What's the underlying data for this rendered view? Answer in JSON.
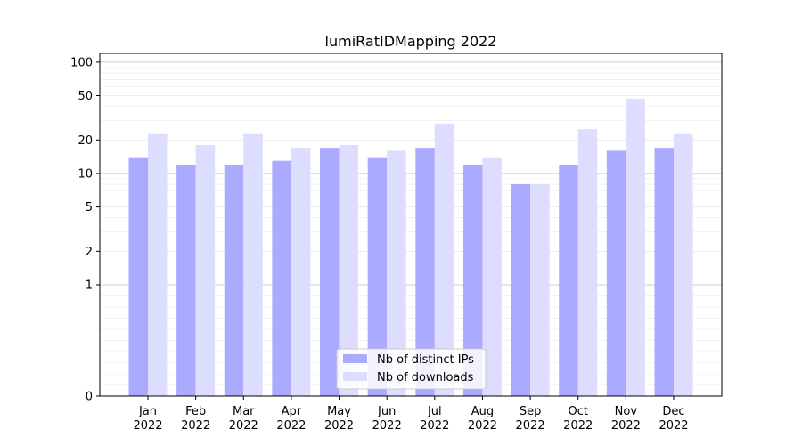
{
  "chart_data": {
    "type": "bar",
    "title": "lumiRatIDMapping 2022",
    "xlabel": "",
    "ylabel": "",
    "yscale": "symlog",
    "ylim": [
      0,
      120
    ],
    "yticks": [
      {
        "value": 0,
        "label": "0"
      },
      {
        "value": 1,
        "label": "1"
      },
      {
        "value": 2,
        "label": "2"
      },
      {
        "value": 5,
        "label": "5"
      },
      {
        "value": 10,
        "label": "10"
      },
      {
        "value": 20,
        "label": "20"
      },
      {
        "value": 50,
        "label": "50"
      },
      {
        "value": 100,
        "label": "100"
      }
    ],
    "categories": [
      {
        "month": "Jan",
        "year": "2022"
      },
      {
        "month": "Feb",
        "year": "2022"
      },
      {
        "month": "Mar",
        "year": "2022"
      },
      {
        "month": "Apr",
        "year": "2022"
      },
      {
        "month": "May",
        "year": "2022"
      },
      {
        "month": "Jun",
        "year": "2022"
      },
      {
        "month": "Jul",
        "year": "2022"
      },
      {
        "month": "Aug",
        "year": "2022"
      },
      {
        "month": "Sep",
        "year": "2022"
      },
      {
        "month": "Oct",
        "year": "2022"
      },
      {
        "month": "Nov",
        "year": "2022"
      },
      {
        "month": "Dec",
        "year": "2022"
      }
    ],
    "series": [
      {
        "name": "Nb of distinct IPs",
        "color": "#aaaaff",
        "values": [
          14,
          12,
          12,
          13,
          17,
          14,
          17,
          12,
          8,
          12,
          16,
          17
        ]
      },
      {
        "name": "Nb of downloads",
        "color": "#ddddff",
        "values": [
          23,
          18,
          23,
          17,
          18,
          16,
          28,
          14,
          8,
          25,
          47,
          23
        ]
      }
    ],
    "grid": true,
    "legend": "bottom-center"
  }
}
